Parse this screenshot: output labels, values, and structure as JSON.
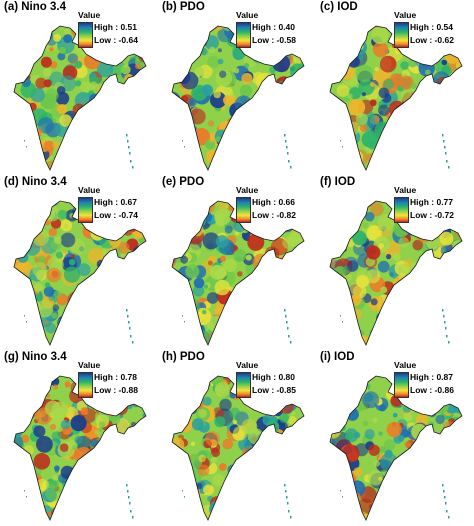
{
  "legend": {
    "title": "Value"
  },
  "colors": {
    "high": "#1a3c8c",
    "mid": "#8fd14a",
    "low": "#c0281c",
    "outline": "#1a1a1a"
  },
  "panels": [
    {
      "id": "a",
      "title": "(a) Nino 3.4",
      "high": "High : 0.51",
      "low": "Low : -0.64"
    },
    {
      "id": "b",
      "title": "(b) PDO",
      "high": "High : 0.40",
      "low": "Low : -0.58"
    },
    {
      "id": "c",
      "title": "(c) IOD",
      "high": "High : 0.54",
      "low": "Low : -0.62"
    },
    {
      "id": "d",
      "title": "(d) Nino 3.4",
      "high": "High : 0.67",
      "low": "Low : -0.74"
    },
    {
      "id": "e",
      "title": "(e) PDO",
      "high": "High : 0.66",
      "low": "Low : -0.82"
    },
    {
      "id": "f",
      "title": "(f) IOD",
      "high": "High : 0.77",
      "low": "Low : -0.72"
    },
    {
      "id": "g",
      "title": "(g) Nino 3.4",
      "high": "High : 0.78",
      "low": "Low : -0.88"
    },
    {
      "id": "h",
      "title": "(h) PDO",
      "high": "High : 0.80",
      "low": "Low : -0.85"
    },
    {
      "id": "i",
      "title": "(i) IOD",
      "high": "High : 0.87",
      "low": "Low : -0.86"
    }
  ]
}
